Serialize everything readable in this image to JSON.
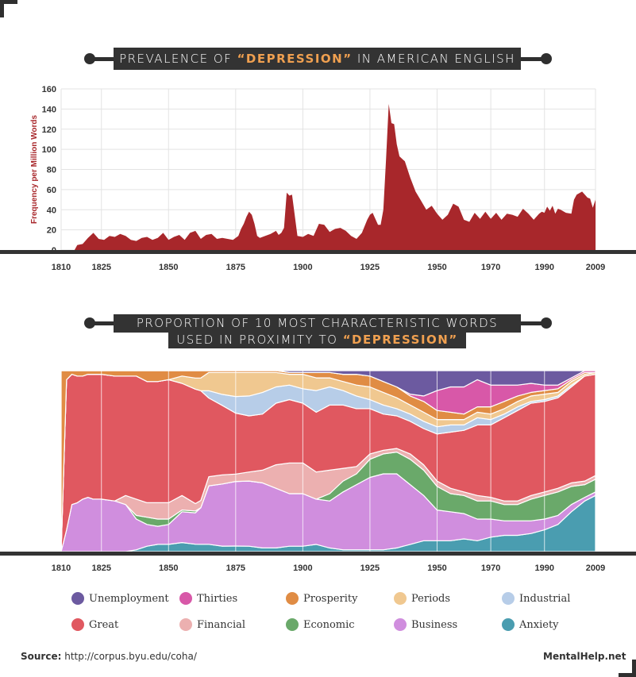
{
  "charts": {
    "top_title": {
      "pre": "PREVALENCE OF ",
      "hl": "“DEPRESSION”",
      "post": " IN AMERICAN ENGLISH"
    },
    "bottom_title": {
      "line1": "PROPORTION OF 10 MOST CHARACTERISTIC WORDS",
      "line2_pre": "USED IN PROXIMITY TO ",
      "line2_hl": "“DEPRESSION”"
    }
  },
  "chart_data": [
    {
      "type": "area",
      "title": "PREVALENCE OF “DEPRESSION” IN AMERICAN ENGLISH",
      "ylabel": "Frequency per Million Words",
      "xlabel": "",
      "xlim": [
        1810,
        2009
      ],
      "ylim": [
        0,
        160
      ],
      "x_ticks": [
        1810,
        1825,
        1850,
        1875,
        1900,
        1925,
        1950,
        1970,
        1990,
        2009
      ],
      "y_ticks": [
        0,
        20,
        40,
        60,
        80,
        100,
        120,
        140,
        160
      ],
      "grid": true,
      "color": "#a8272b",
      "series": [
        {
          "x": [
            1810,
            1815,
            1816,
            1818,
            1820,
            1822,
            1824,
            1826,
            1828,
            1830,
            1832,
            1834,
            1836,
            1838,
            1840,
            1842,
            1844,
            1846,
            1848,
            1850,
            1852,
            1854,
            1856,
            1858,
            1860,
            1862,
            1864,
            1866,
            1868,
            1870,
            1872,
            1874,
            1876,
            1877,
            1878,
            1879,
            1880,
            1881,
            1882,
            1883,
            1884,
            1886,
            1888,
            1890,
            1891,
            1892,
            1893,
            1894,
            1895,
            1896,
            1898,
            1900,
            1902,
            1904,
            1906,
            1908,
            1910,
            1912,
            1914,
            1916,
            1918,
            1920,
            1922,
            1924,
            1925,
            1926,
            1928,
            1929,
            1930,
            1931,
            1932,
            1933,
            1934,
            1935,
            1936,
            1938,
            1940,
            1942,
            1944,
            1946,
            1948,
            1950,
            1952,
            1954,
            1956,
            1958,
            1960,
            1962,
            1964,
            1966,
            1968,
            1970,
            1972,
            1974,
            1976,
            1978,
            1980,
            1982,
            1984,
            1986,
            1988,
            1989,
            1990,
            1991,
            1992,
            1993,
            1994,
            1995,
            1996,
            1998,
            2000,
            2001,
            2002,
            2004,
            2006,
            2007,
            2008,
            2009
          ],
          "values": [
            0,
            0,
            5,
            6,
            12,
            17,
            11,
            10,
            14,
            13,
            16,
            14,
            10,
            9,
            12,
            13,
            10,
            12,
            17,
            10,
            13,
            15,
            10,
            17,
            19,
            11,
            15,
            16,
            11,
            12,
            11,
            10,
            14,
            21,
            26,
            33,
            38,
            35,
            26,
            14,
            12,
            14,
            16,
            19,
            15,
            17,
            22,
            57,
            54,
            55,
            14,
            13,
            16,
            14,
            26,
            25,
            18,
            21,
            22,
            19,
            14,
            11,
            17,
            30,
            35,
            37,
            25,
            25,
            40,
            90,
            145,
            126,
            125,
            105,
            93,
            88,
            72,
            58,
            49,
            40,
            44,
            36,
            30,
            35,
            46,
            43,
            30,
            28,
            37,
            31,
            38,
            31,
            37,
            30,
            36,
            35,
            33,
            41,
            36,
            30,
            36,
            38,
            37,
            43,
            39,
            44,
            36,
            41,
            40,
            37,
            36,
            50,
            55,
            58,
            52,
            51,
            42,
            50
          ]
        }
      ]
    },
    {
      "type": "area",
      "title": "PROPORTION OF 10 MOST CHARACTERISTIC WORDS USED IN PROXIMITY TO “DEPRESSION”",
      "stacked": "100%",
      "xlim": [
        1810,
        2009
      ],
      "x_ticks": [
        1810,
        1825,
        1850,
        1875,
        1900,
        1925,
        1950,
        1970,
        1990,
        2009
      ],
      "legend": "bottom",
      "x": [
        1810,
        1812,
        1814,
        1816,
        1818,
        1820,
        1822,
        1825,
        1830,
        1834,
        1838,
        1842,
        1846,
        1850,
        1855,
        1860,
        1862,
        1865,
        1870,
        1875,
        1880,
        1885,
        1890,
        1895,
        1900,
        1905,
        1910,
        1915,
        1920,
        1925,
        1930,
        1935,
        1940,
        1945,
        1950,
        1955,
        1960,
        1965,
        1970,
        1975,
        1980,
        1985,
        1990,
        1995,
        2000,
        2005,
        2009
      ],
      "series": [
        {
          "name": "Anxiety",
          "color": "#4a9db0",
          "values": [
            0,
            0,
            0,
            0,
            0,
            0,
            0,
            0,
            0,
            0,
            1,
            3,
            4,
            4,
            5,
            4,
            4,
            4,
            3,
            3,
            3,
            2,
            2,
            3,
            3,
            4,
            2,
            1,
            1,
            1,
            1,
            2,
            4,
            6,
            6,
            6,
            7,
            6,
            8,
            9,
            9,
            10,
            12,
            15,
            22,
            28,
            31
          ]
        },
        {
          "name": "Business",
          "color": "#d08ede",
          "values": [
            0,
            12,
            26,
            27,
            29,
            30,
            29,
            29,
            28,
            26,
            17,
            12,
            10,
            11,
            17,
            17,
            20,
            32,
            34,
            35,
            36,
            36,
            33,
            29,
            29,
            25,
            26,
            32,
            36,
            40,
            42,
            41,
            33,
            25,
            17,
            16,
            14,
            12,
            10,
            8,
            8,
            7,
            6,
            5,
            4,
            2,
            2
          ]
        },
        {
          "name": "Economic",
          "color": "#6aa96a",
          "values": [
            0,
            0,
            0,
            0,
            0,
            0,
            0,
            0,
            0,
            0,
            2,
            4,
            4,
            3,
            1,
            1,
            0,
            0,
            0,
            0,
            0,
            0,
            0,
            0,
            0,
            0,
            4,
            6,
            6,
            10,
            11,
            12,
            14,
            14,
            13,
            10,
            10,
            10,
            10,
            9,
            9,
            12,
            13,
            13,
            10,
            7,
            7
          ]
        },
        {
          "name": "Financial",
          "color": "#ecb0b0",
          "values": [
            0,
            0,
            0,
            0,
            0,
            0,
            0,
            0,
            0,
            5,
            9,
            8,
            9,
            9,
            8,
            4,
            4,
            5,
            5,
            4,
            5,
            7,
            13,
            17,
            17,
            15,
            13,
            7,
            4,
            3,
            2,
            2,
            3,
            3,
            3,
            3,
            2,
            3,
            2,
            2,
            2,
            2,
            2,
            2,
            2,
            2,
            2
          ]
        },
        {
          "name": "Great",
          "color": "#e05860",
          "values": [
            0,
            83,
            72,
            70,
            68,
            68,
            69,
            69,
            69,
            66,
            68,
            67,
            67,
            68,
            62,
            62,
            60,
            43,
            38,
            33,
            31,
            31,
            34,
            35,
            33,
            33,
            36,
            35,
            32,
            25,
            20,
            18,
            18,
            20,
            26,
            31,
            34,
            39,
            40,
            46,
            50,
            51,
            50,
            50,
            53,
            58,
            56
          ]
        },
        {
          "name": "Industrial",
          "color": "#b7cde8",
          "values": [
            0,
            0,
            0,
            0,
            0,
            0,
            0,
            0,
            0,
            0,
            0,
            0,
            0,
            0,
            0,
            0,
            0,
            4,
            6,
            9,
            11,
            12,
            9,
            8,
            8,
            12,
            10,
            8,
            7,
            5,
            5,
            4,
            4,
            4,
            4,
            4,
            3,
            4,
            3,
            2,
            2,
            1,
            1,
            1,
            1,
            0,
            0
          ]
        },
        {
          "name": "Periods",
          "color": "#f0c890",
          "values": [
            0,
            0,
            0,
            0,
            0,
            0,
            0,
            0,
            0,
            0,
            0,
            0,
            0,
            0,
            4,
            6,
            7,
            10,
            12,
            13,
            13,
            11,
            8,
            6,
            8,
            7,
            5,
            5,
            6,
            7,
            7,
            6,
            5,
            5,
            4,
            3,
            3,
            3,
            3,
            3,
            3,
            3,
            3,
            2,
            2,
            1,
            1
          ]
        },
        {
          "name": "Prosperity",
          "color": "#e08c44",
          "values": [
            100,
            5,
            2,
            3,
            3,
            2,
            2,
            2,
            3,
            3,
            3,
            6,
            6,
            5,
            3,
            4,
            4,
            1,
            1,
            1,
            1,
            1,
            1,
            1,
            1,
            3,
            3,
            4,
            6,
            6,
            6,
            6,
            5,
            6,
            5,
            4,
            3,
            3,
            4,
            4,
            3,
            2,
            2,
            2,
            1,
            1,
            0
          ]
        },
        {
          "name": "Thirties",
          "color": "#d858a8",
          "values": [
            0,
            0,
            0,
            0,
            0,
            0,
            0,
            0,
            0,
            0,
            0,
            0,
            0,
            0,
            0,
            0,
            0,
            0,
            0,
            0,
            0,
            0,
            0,
            0,
            0,
            0,
            0,
            0,
            0,
            0,
            0,
            0,
            1,
            3,
            11,
            14,
            15,
            15,
            12,
            9,
            6,
            5,
            3,
            2,
            1,
            1,
            1
          ]
        },
        {
          "name": "Unemployment",
          "color": "#6c5aa0",
          "values": [
            0,
            0,
            0,
            0,
            0,
            0,
            0,
            0,
            0,
            0,
            0,
            0,
            0,
            0,
            0,
            0,
            0,
            0,
            0,
            0,
            0,
            0,
            0,
            1,
            1,
            1,
            1,
            2,
            2,
            3,
            6,
            9,
            13,
            14,
            11,
            9,
            9,
            5,
            8,
            8,
            8,
            7,
            8,
            8,
            4,
            0,
            0
          ]
        }
      ]
    }
  ],
  "legend": {
    "items": [
      {
        "label": "Unemployment",
        "color": "#6c5aa0"
      },
      {
        "label": "Thirties",
        "color": "#d858a8"
      },
      {
        "label": "Prosperity",
        "color": "#e08c44"
      },
      {
        "label": "Periods",
        "color": "#f0c890"
      },
      {
        "label": "Industrial",
        "color": "#b7cde8"
      },
      {
        "label": "Great",
        "color": "#e05860"
      },
      {
        "label": "Financial",
        "color": "#ecb0b0"
      },
      {
        "label": "Economic",
        "color": "#6aa96a"
      },
      {
        "label": "Business",
        "color": "#d08ede"
      },
      {
        "label": "Anxiety",
        "color": "#4a9db0"
      }
    ]
  },
  "footer": {
    "source_label": "Source:",
    "source_url": "http://corpus.byu.edu/coha/",
    "brand": "MentalHelp.net"
  }
}
